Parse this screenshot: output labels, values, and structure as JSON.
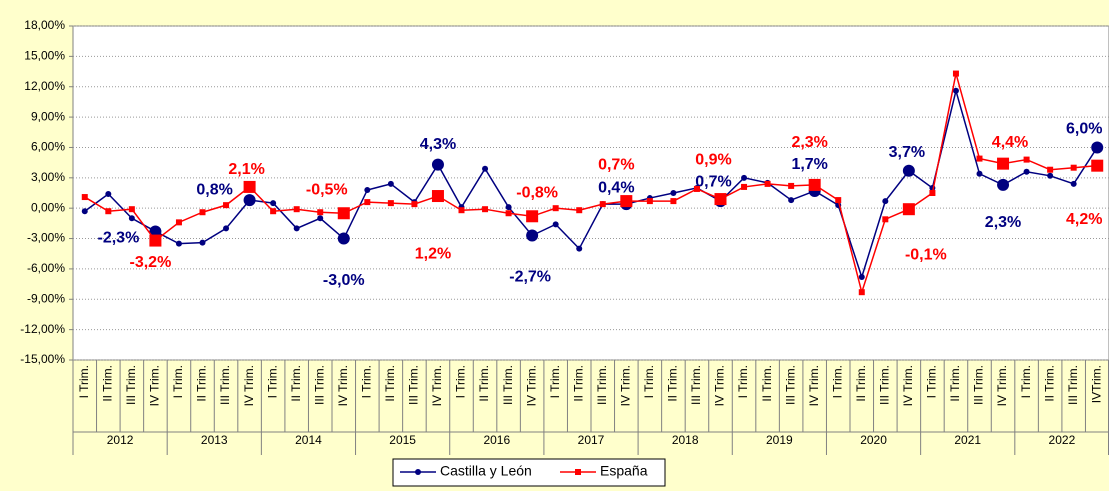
{
  "chart_data": {
    "type": "line",
    "categories": [
      "I Trim.",
      "II Trim.",
      "III Trim.",
      "IV Trim.",
      "I Trim.",
      "II Trim.",
      "III Trim.",
      "IV Trim.",
      "I Trim.",
      "II Trim.",
      "III Trim.",
      "IV Trim.",
      "I Trim.",
      "II Trim.",
      "III Trim.",
      "IV Trim.",
      "I Trim.",
      "II Trim.",
      "III Trim.",
      "IV Trim.",
      "I Trim.",
      "II Trim.",
      "III Trim.",
      "IV Trim.",
      "I Trim.",
      "II Trim.",
      "III Trim.",
      "IV Trim.",
      "I Trim.",
      "II Trim.",
      "III Trim.",
      "IV Trim.",
      "I Trim.",
      "II Trim.",
      "III Trim.",
      "IV Trim.",
      "I Trim.",
      "II Trim.",
      "III Trim.",
      "IV Trim.",
      "I Trim.",
      "II Trim.",
      "III Trim.",
      "IVTrim."
    ],
    "groups": [
      "2012",
      "2013",
      "2014",
      "2015",
      "2016",
      "2017",
      "2018",
      "2019",
      "2020",
      "2021",
      "2022"
    ],
    "series": [
      {
        "name": "Castilla y León",
        "color": "#000080",
        "values": [
          -0.3,
          1.4,
          -1.0,
          -2.3,
          -3.5,
          -3.4,
          -2.0,
          0.8,
          0.5,
          -2.0,
          -1.0,
          -3.0,
          1.8,
          2.4,
          0.6,
          4.3,
          0.1,
          3.9,
          0.1,
          -2.7,
          -1.6,
          -4.0,
          0.4,
          0.4,
          1.0,
          1.5,
          2.0,
          0.7,
          3.0,
          2.5,
          0.8,
          1.7,
          0.3,
          -6.8,
          0.7,
          3.7,
          2.0,
          11.6,
          3.4,
          2.3,
          3.6,
          3.2,
          2.4,
          6.0
        ],
        "value_labels": [
          null,
          null,
          null,
          "-2,3%",
          null,
          null,
          null,
          "0,8%",
          null,
          null,
          null,
          "-3,0%",
          null,
          null,
          null,
          "4,3%",
          null,
          null,
          null,
          "-2,7%",
          null,
          null,
          null,
          "0,4%",
          null,
          null,
          null,
          "0,7%",
          null,
          null,
          null,
          "1,7%",
          null,
          null,
          null,
          "3,7%",
          null,
          null,
          null,
          "2,3%",
          null,
          null,
          null,
          "6,0%"
        ]
      },
      {
        "name": "España",
        "color": "#ff0000",
        "values": [
          1.1,
          -0.3,
          -0.1,
          -3.2,
          -1.4,
          -0.4,
          0.3,
          2.1,
          -0.3,
          -0.1,
          -0.4,
          -0.5,
          0.6,
          0.5,
          0.4,
          1.2,
          -0.2,
          -0.1,
          -0.5,
          -0.8,
          0.0,
          -0.2,
          0.4,
          0.7,
          0.7,
          0.7,
          1.9,
          0.9,
          2.1,
          2.4,
          2.2,
          2.3,
          0.8,
          -8.3,
          -1.1,
          -0.1,
          1.5,
          13.3,
          4.9,
          4.4,
          4.8,
          3.8,
          4.0,
          4.2
        ],
        "value_labels": [
          null,
          null,
          null,
          "-3,2%",
          null,
          null,
          null,
          "2,1%",
          null,
          null,
          null,
          "-0,5%",
          null,
          null,
          null,
          "1,2%",
          null,
          null,
          null,
          "-0,8%",
          null,
          null,
          null,
          "0,7%",
          null,
          null,
          null,
          "0,9%",
          null,
          null,
          null,
          "2,3%",
          null,
          null,
          null,
          "-0,1%",
          null,
          null,
          null,
          "4,4%",
          null,
          null,
          null,
          "4,2%"
        ]
      }
    ],
    "ylim": [
      -15,
      18
    ],
    "yticks": [
      {
        "value": -15,
        "label": "-15,00%"
      },
      {
        "value": -12,
        "label": "-12,00%"
      },
      {
        "value": -9,
        "label": "-9,00%"
      },
      {
        "value": -6,
        "label": "-6,00%"
      },
      {
        "value": -3,
        "label": "-3,00%"
      },
      {
        "value": 0,
        "label": "0,00%"
      },
      {
        "value": 3,
        "label": "3,00%"
      },
      {
        "value": 6,
        "label": "6,00%"
      },
      {
        "value": 9,
        "label": "9,00%"
      },
      {
        "value": 12,
        "label": "12,00%"
      },
      {
        "value": 15,
        "label": "15,00%"
      },
      {
        "value": 18,
        "label": "18,00%"
      }
    ],
    "grid": true
  }
}
